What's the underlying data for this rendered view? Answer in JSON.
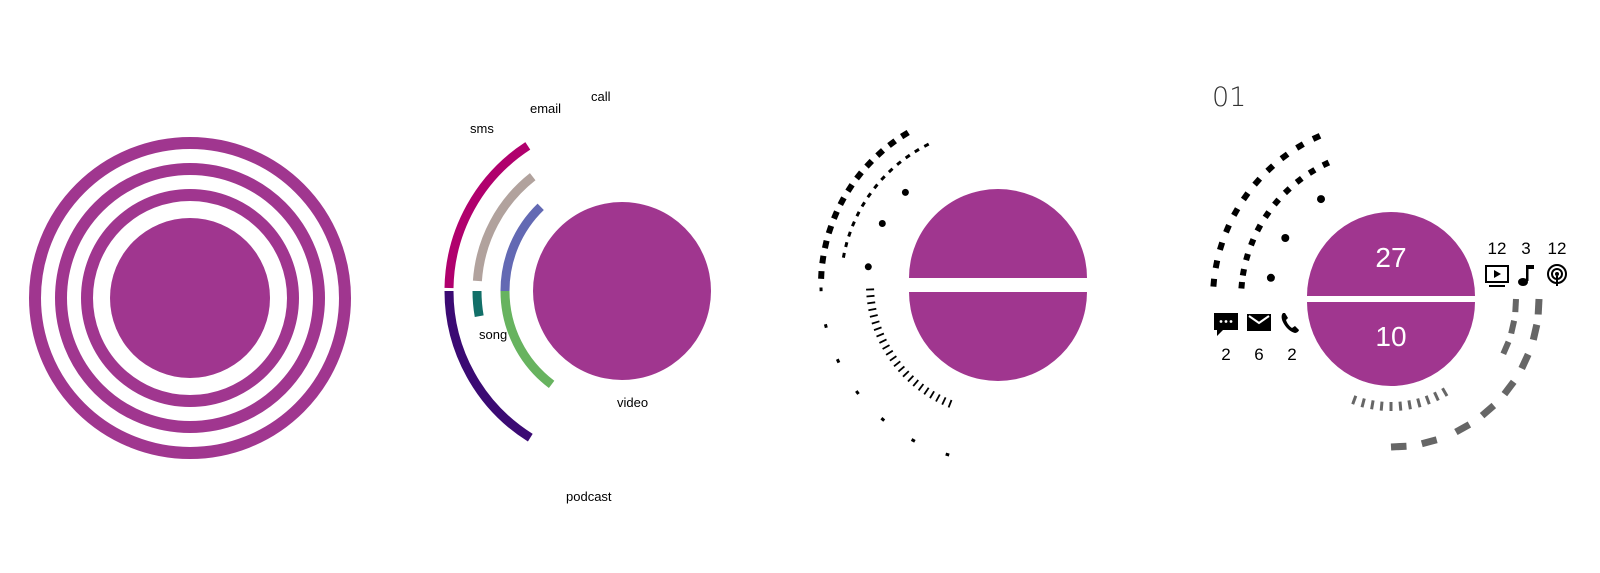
{
  "colors": {
    "accent": "#a0368f",
    "sms": "#b0006d",
    "email": "#b1a29d",
    "call": "#6369b3",
    "song": "#126f68",
    "video": "#67b35f",
    "podcast": "#3b0a73",
    "ink": "#000000",
    "grey": "#666666"
  },
  "panel2": {
    "labels": {
      "sms": "sms",
      "email": "email",
      "call": "call",
      "song": "song",
      "video": "video",
      "podcast": "podcast"
    }
  },
  "panel4": {
    "page_number": "01",
    "top_value": "27",
    "bottom_value": "10",
    "left_counts": {
      "sms": "2",
      "email": "6",
      "call": "2"
    },
    "right_counts": {
      "video": "12",
      "song": "3",
      "podcast": "12"
    },
    "icons": {
      "sms": "chat-bubble-icon",
      "email": "envelope-icon",
      "call": "phone-icon",
      "video": "video-player-icon",
      "song": "music-note-icon",
      "podcast": "podcast-icon"
    }
  }
}
